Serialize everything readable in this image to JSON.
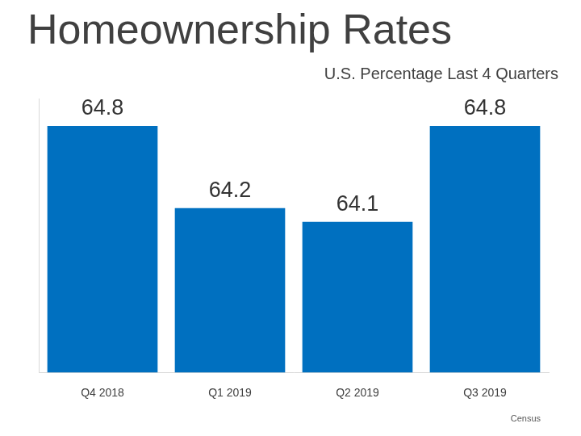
{
  "chart_data": {
    "type": "bar",
    "title": "Homeownership Rates",
    "subtitle": "U.S. Percentage Last 4 Quarters",
    "source": "Census",
    "categories": [
      "Q4 2018",
      "Q1 2019",
      "Q2 2019",
      "Q3 2019"
    ],
    "values": [
      64.8,
      64.2,
      64.1,
      64.8
    ],
    "color": "#0070c0",
    "ylim": [
      63,
      65
    ],
    "grid": false,
    "data_labels": true,
    "tick_labels": "x"
  }
}
